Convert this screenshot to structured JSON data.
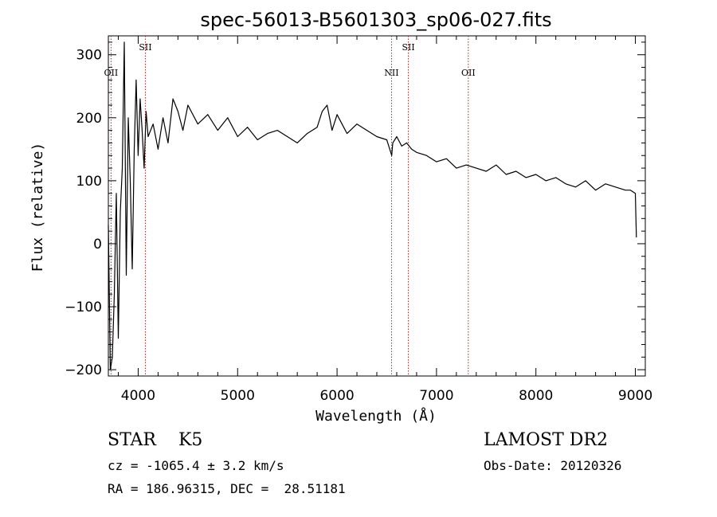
{
  "chart_data": {
    "type": "line",
    "title": "spec-56013-B5601303_sp06-027.fits",
    "xlabel": "Wavelength (Å)",
    "ylabel": "Flux (relative)",
    "xlim": [
      3700,
      9100
    ],
    "ylim": [
      -210,
      330
    ],
    "xticks": [
      4000,
      5000,
      6000,
      7000,
      8000,
      9000
    ],
    "yticks": [
      -200,
      -100,
      0,
      100,
      200,
      300
    ],
    "grid": false,
    "series": [
      {
        "color": "#000000",
        "x": [
          3700,
          3720,
          3740,
          3760,
          3780,
          3800,
          3820,
          3840,
          3860,
          3880,
          3900,
          3920,
          3940,
          3960,
          3980,
          4000,
          4020,
          4040,
          4060,
          4080,
          4100,
          4150,
          4200,
          4250,
          4300,
          4350,
          4400,
          4450,
          4500,
          4600,
          4700,
          4800,
          4900,
          5000,
          5100,
          5200,
          5300,
          5400,
          5500,
          5600,
          5700,
          5800,
          5850,
          5900,
          5950,
          6000,
          6050,
          6100,
          6200,
          6300,
          6400,
          6500,
          6550,
          6560,
          6600,
          6650,
          6700,
          6750,
          6800,
          6900,
          7000,
          7100,
          7200,
          7300,
          7400,
          7500,
          7600,
          7700,
          7800,
          7900,
          8000,
          8100,
          8200,
          8300,
          8400,
          8500,
          8600,
          8700,
          8800,
          8900,
          8950,
          9000,
          9010
        ],
        "y": [
          30,
          -200,
          -180,
          -80,
          80,
          -150,
          50,
          120,
          320,
          -50,
          200,
          100,
          -40,
          150,
          260,
          140,
          230,
          180,
          120,
          210,
          170,
          190,
          150,
          200,
          160,
          230,
          210,
          180,
          220,
          190,
          205,
          180,
          200,
          170,
          185,
          165,
          175,
          180,
          170,
          160,
          175,
          185,
          210,
          220,
          180,
          205,
          190,
          175,
          190,
          180,
          170,
          165,
          140,
          160,
          170,
          155,
          160,
          150,
          145,
          140,
          130,
          135,
          120,
          125,
          120,
          115,
          125,
          110,
          115,
          105,
          110,
          100,
          105,
          95,
          90,
          100,
          85,
          95,
          90,
          85,
          85,
          80,
          10
        ]
      }
    ],
    "annotations": [
      {
        "label": "OII",
        "x": 3727,
        "color": "#b22222"
      },
      {
        "label": "SII",
        "x": 4072,
        "color": "#b22222"
      },
      {
        "label": "NII",
        "x": 6548,
        "color": "#b22222"
      },
      {
        "label": "SII",
        "x": 6717,
        "color": "#b22222"
      },
      {
        "label": "OII",
        "x": 7320,
        "color": "#b22222"
      }
    ]
  },
  "info": {
    "class_text": "STAR    K5",
    "survey": "LAMOST DR2",
    "cz": "cz = -1065.4 ± 3.2 km/s",
    "obs_date": "Obs-Date: 20120326",
    "radec": "RA = 186.96315, DEC =  28.51181"
  }
}
